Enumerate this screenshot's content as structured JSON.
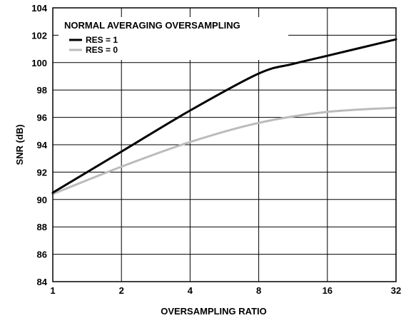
{
  "chart_data": {
    "type": "line",
    "title": "",
    "xlabel": "OVERSAMPLING RATIO",
    "ylabel": "SNR (dB)",
    "x_scale": "log2",
    "xlim": [
      1,
      32
    ],
    "ylim": [
      84,
      104
    ],
    "x_ticks": [
      "1",
      "2",
      "4",
      "8",
      "16",
      "32"
    ],
    "y_ticks": [
      "84",
      "86",
      "88",
      "90",
      "92",
      "94",
      "96",
      "98",
      "100",
      "102",
      "104"
    ],
    "grid": true,
    "legend": {
      "title": "NORMAL AVERAGING OVERSAMPLING",
      "placement": "top-left"
    },
    "series": [
      {
        "name": "RES = 1",
        "color": "#000000",
        "points": [
          [
            1,
            90.5
          ],
          [
            2,
            93.5
          ],
          [
            4,
            96.5
          ],
          [
            8,
            99.2
          ],
          [
            11.3,
            99.9
          ],
          [
            16,
            100.5
          ],
          [
            32,
            101.7
          ]
        ]
      },
      {
        "name": "RES = 0",
        "color": "#bbbbbb",
        "points": [
          [
            1,
            90.4
          ],
          [
            2,
            92.4
          ],
          [
            4,
            94.2
          ],
          [
            8,
            95.6
          ],
          [
            16,
            96.4
          ],
          [
            32,
            96.7
          ]
        ]
      }
    ]
  }
}
